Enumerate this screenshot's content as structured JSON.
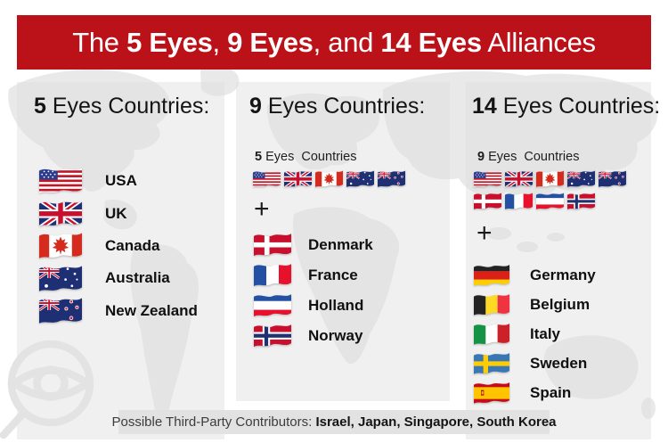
{
  "banner": {
    "segments": [
      {
        "text": "The ",
        "bold": false
      },
      {
        "text": "5 Eyes",
        "bold": true
      },
      {
        "text": ", ",
        "bold": false
      },
      {
        "text": "9 Eyes",
        "bold": true
      },
      {
        "text": ", and ",
        "bold": false
      },
      {
        "text": "14 Eyes",
        "bold": true
      },
      {
        "text": " Alliances",
        "bold": false
      }
    ]
  },
  "columns": [
    {
      "heading_num": "5",
      "heading_rest": " Eyes Countries:",
      "countries": [
        {
          "flag": "usa",
          "label": "USA"
        },
        {
          "flag": "uk",
          "label": "UK"
        },
        {
          "flag": "canada",
          "label": "Canada"
        },
        {
          "flag": "australia",
          "label": "Australia"
        },
        {
          "flag": "newzealand",
          "label": "New Zealand"
        }
      ]
    },
    {
      "heading_num": "9",
      "heading_rest": " Eyes Countries:",
      "subset_num": "5",
      "subset_rest": " Eyes  Countries",
      "subset_flags": [
        "usa",
        "uk",
        "canada",
        "australia",
        "newzealand"
      ],
      "plus": "+",
      "countries": [
        {
          "flag": "denmark",
          "label": "Denmark"
        },
        {
          "flag": "france",
          "label": "France"
        },
        {
          "flag": "holland",
          "label": "Holland"
        },
        {
          "flag": "norway",
          "label": "Norway"
        }
      ]
    },
    {
      "heading_num": "14",
      "heading_rest": " Eyes Countries:",
      "subset_num": "9",
      "subset_rest": " Eyes  Countries",
      "subset_flags_row1": [
        "usa",
        "uk",
        "canada",
        "australia",
        "newzealand"
      ],
      "subset_flags_row2": [
        "denmark",
        "france",
        "holland",
        "norway"
      ],
      "plus": "+",
      "countries": [
        {
          "flag": "germany",
          "label": "Germany"
        },
        {
          "flag": "belgium",
          "label": "Belgium"
        },
        {
          "flag": "italy",
          "label": "Italy"
        },
        {
          "flag": "sweden",
          "label": "Sweden"
        },
        {
          "flag": "spain",
          "label": "Spain"
        }
      ]
    }
  ],
  "footer": {
    "label": "Possible Third-Party Contributors: ",
    "countries_bold": "Israel, Japan, Singapore, South Korea"
  },
  "colors": {
    "banner_bg": "#bb1118",
    "card_bg": "#f0f0f0",
    "footer_bg": "#e2e2e2"
  },
  "icons": {
    "watermark": "eye-magnifier-icon",
    "flags": [
      "usa",
      "uk",
      "canada",
      "australia",
      "newzealand",
      "denmark",
      "france",
      "holland",
      "norway",
      "germany",
      "belgium",
      "italy",
      "sweden",
      "spain"
    ]
  }
}
